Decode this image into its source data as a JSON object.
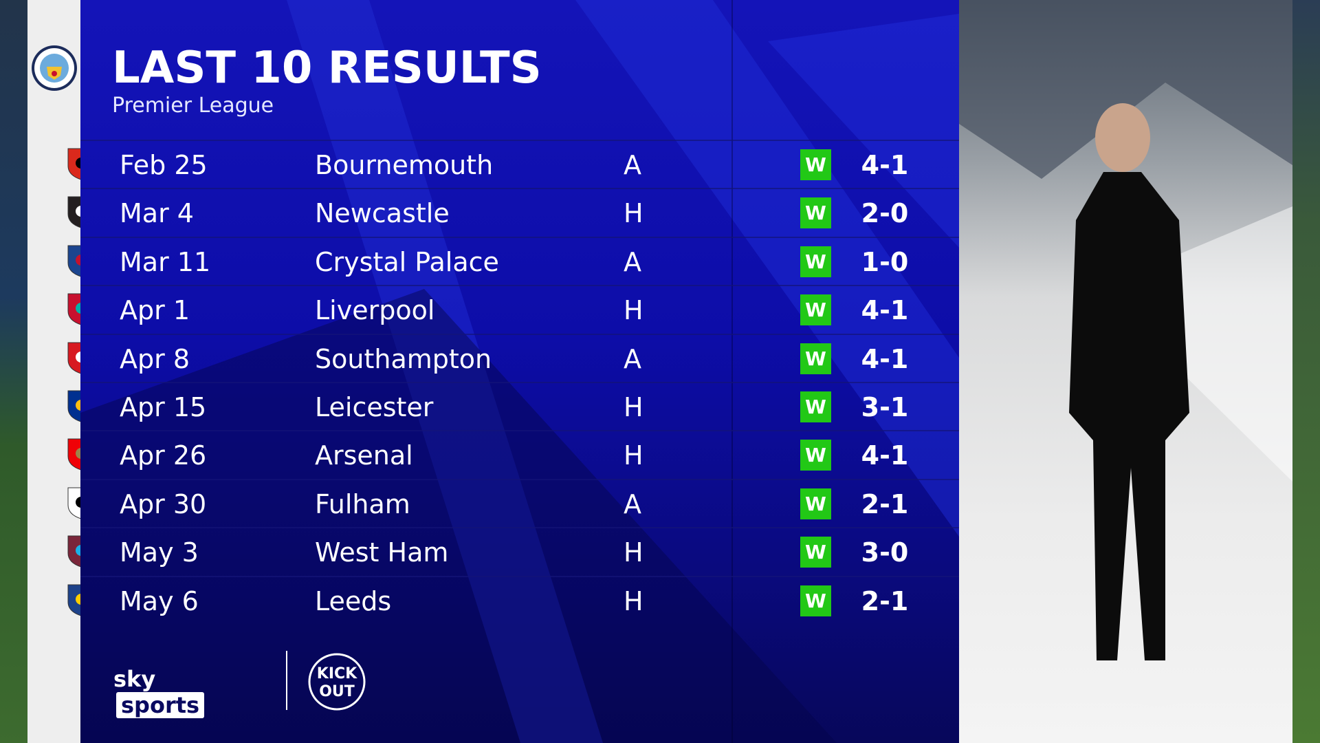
{
  "header": {
    "title": "LAST 10 RESULTS",
    "subtitle": "Premier League"
  },
  "team_crest": "manchester-city-crest",
  "results": [
    {
      "date": "Feb 25",
      "opponent": "Bournemouth",
      "venue": "A",
      "outcome": "W",
      "score": "4-1",
      "crest": "bournemouth-crest"
    },
    {
      "date": "Mar 4",
      "opponent": "Newcastle",
      "venue": "H",
      "outcome": "W",
      "score": "2-0",
      "crest": "newcastle-crest"
    },
    {
      "date": "Mar 11",
      "opponent": "Crystal Palace",
      "venue": "A",
      "outcome": "W",
      "score": "1-0",
      "crest": "crystal-palace-crest"
    },
    {
      "date": "Apr 1",
      "opponent": "Liverpool",
      "venue": "H",
      "outcome": "W",
      "score": "4-1",
      "crest": "liverpool-crest"
    },
    {
      "date": "Apr 8",
      "opponent": "Southampton",
      "venue": "A",
      "outcome": "W",
      "score": "4-1",
      "crest": "southampton-crest"
    },
    {
      "date": "Apr 15",
      "opponent": "Leicester",
      "venue": "H",
      "outcome": "W",
      "score": "3-1",
      "crest": "leicester-crest"
    },
    {
      "date": "Apr 26",
      "opponent": "Arsenal",
      "venue": "H",
      "outcome": "W",
      "score": "4-1",
      "crest": "arsenal-crest"
    },
    {
      "date": "Apr 30",
      "opponent": "Fulham",
      "venue": "A",
      "outcome": "W",
      "score": "2-1",
      "crest": "fulham-crest"
    },
    {
      "date": "May 3",
      "opponent": "West Ham",
      "venue": "H",
      "outcome": "W",
      "score": "3-0",
      "crest": "west-ham-crest"
    },
    {
      "date": "May 6",
      "opponent": "Leeds",
      "venue": "H",
      "outcome": "W",
      "score": "2-1",
      "crest": "leeds-crest"
    }
  ],
  "footer": {
    "sky": "sky",
    "sports": "sports",
    "partner_logo": "KICK IT OUT"
  },
  "colors": {
    "panel": "#0d0da8",
    "win": "#22c816",
    "crest_column": "#eeeeee"
  }
}
